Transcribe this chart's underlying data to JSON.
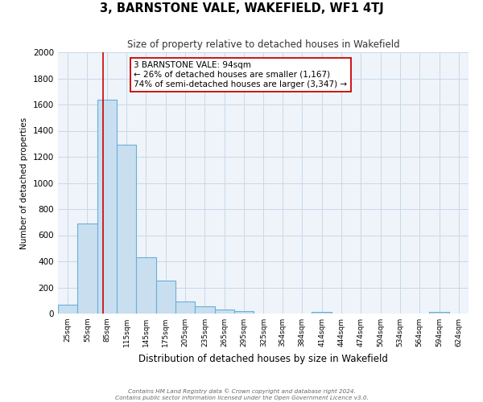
{
  "title": "3, BARNSTONE VALE, WAKEFIELD, WF1 4TJ",
  "subtitle": "Size of property relative to detached houses in Wakefield",
  "xlabel": "Distribution of detached houses by size in Wakefield",
  "ylabel": "Number of detached properties",
  "bar_color": "#c9dff0",
  "bar_edge_color": "#6aaed6",
  "background_color": "#ffffff",
  "plot_bg_color": "#eef4fa",
  "grid_color": "#c8d8e8",
  "redline_color": "#cc0000",
  "redline_x": 94,
  "annotation_text": "3 BARNSTONE VALE: 94sqm\n← 26% of detached houses are smaller (1,167)\n74% of semi-detached houses are larger (3,347) →",
  "annotation_box_edge": "#cc0000",
  "footer": "Contains HM Land Registry data © Crown copyright and database right 2024.\nContains public sector information licensed under the Open Government Licence v3.0.",
  "bins_left": [
    25,
    55,
    85,
    115,
    145,
    175,
    205,
    235,
    265,
    295,
    325,
    354,
    384,
    414,
    444,
    474,
    504,
    534,
    564,
    594,
    624
  ],
  "bin_width": 30,
  "bar_heights": [
    70,
    690,
    1640,
    1290,
    430,
    255,
    90,
    55,
    30,
    20,
    0,
    0,
    0,
    15,
    0,
    0,
    0,
    0,
    0,
    15,
    0
  ],
  "ylim": [
    0,
    2000
  ],
  "yticks": [
    0,
    200,
    400,
    600,
    800,
    1000,
    1200,
    1400,
    1600,
    1800,
    2000
  ],
  "xtick_labels": [
    "25sqm",
    "55sqm",
    "85sqm",
    "115sqm",
    "145sqm",
    "175sqm",
    "205sqm",
    "235sqm",
    "265sqm",
    "295sqm",
    "325sqm",
    "354sqm",
    "384sqm",
    "414sqm",
    "444sqm",
    "474sqm",
    "504sqm",
    "534sqm",
    "564sqm",
    "594sqm",
    "624sqm"
  ],
  "figsize": [
    6.0,
    5.0
  ],
  "dpi": 100
}
